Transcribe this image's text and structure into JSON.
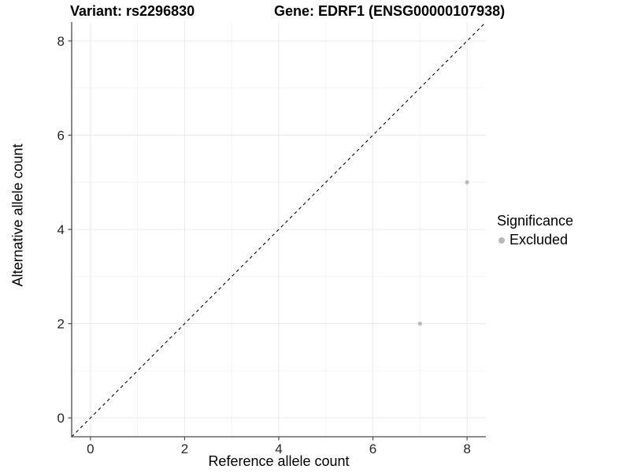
{
  "header": {
    "variant_title": "Variant: rs2296830",
    "gene_title": "Gene: EDRF1 (ENSG00000107938)"
  },
  "chart_data": {
    "type": "scatter",
    "title": "Variant: rs2296830 — Gene: EDRF1 (ENSG00000107938)",
    "xlabel": "Reference allele count",
    "ylabel": "Alternative allele count",
    "xlim": [
      -0.4,
      8.4
    ],
    "ylim": [
      -0.4,
      8.4
    ],
    "xticks": [
      0,
      2,
      4,
      6,
      8
    ],
    "yticks": [
      0,
      2,
      4,
      6,
      8
    ],
    "minor_xticks": [
      1,
      3,
      5,
      7
    ],
    "minor_yticks": [
      1,
      3,
      5,
      7
    ],
    "grid": "major+minor",
    "series": [
      {
        "name": "Excluded",
        "color": "#b9b9b9",
        "points": [
          {
            "x": 8,
            "y": 5
          },
          {
            "x": 7,
            "y": 2
          }
        ]
      }
    ],
    "reference_line": {
      "kind": "identity y=x",
      "style": "dashed",
      "color": "#000000"
    },
    "legend": {
      "title": "Significance",
      "position": "right",
      "items": [
        {
          "label": "Excluded",
          "color": "#b9b9b9"
        }
      ]
    }
  },
  "style_colors": {
    "background": "#ffffff",
    "grid_major": "#e9e9e9",
    "grid_minor": "#f4f4f4",
    "axis_line": "#4a4a4a",
    "tick_label": "#262626",
    "point": "#b9b9b9"
  }
}
